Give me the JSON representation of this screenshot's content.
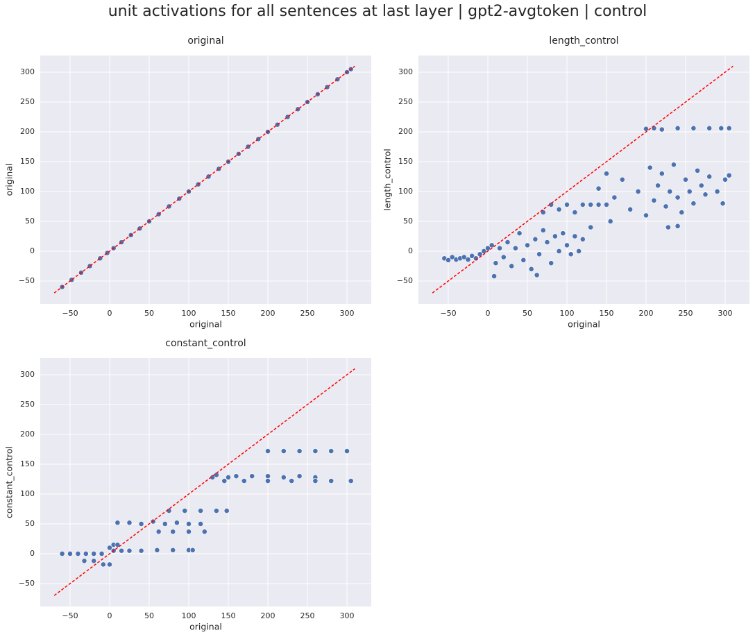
{
  "title": "unit activations for all sentences at last layer | gpt2-avgtoken | control",
  "chart_data": [
    {
      "type": "scatter",
      "title": "original",
      "xlabel": "original",
      "ylabel": "original",
      "color": "#4c72b0",
      "grid": true,
      "xlim": [
        -87.7,
        330.7
      ],
      "ylim": [
        -88.4,
        327.9
      ],
      "xticks": [
        {
          "value": -50,
          "label": "−50"
        },
        0,
        50,
        100,
        150,
        200,
        250,
        300
      ],
      "yticks": [
        {
          "value": -50,
          "label": "−50"
        },
        0,
        50,
        100,
        150,
        200,
        250,
        300
      ],
      "x": [
        -60,
        -48,
        -36,
        -25,
        -12,
        -3,
        5,
        15,
        27,
        38,
        50,
        62,
        75,
        88,
        100,
        112,
        125,
        138,
        150,
        163,
        175,
        188,
        200,
        212,
        225,
        238,
        250,
        263,
        275,
        288,
        300,
        305
      ],
      "y": [
        -60,
        -48,
        -36,
        -25,
        -12,
        -3,
        5,
        15,
        27,
        38,
        50,
        62,
        75,
        88,
        100,
        112,
        125,
        138,
        150,
        163,
        175,
        188,
        200,
        212,
        225,
        238,
        250,
        263,
        275,
        288,
        300,
        305
      ],
      "reference_line": {
        "color": "red",
        "x": [
          -70,
          310
        ],
        "y": [
          -70,
          310
        ]
      }
    },
    {
      "type": "scatter",
      "title": "length_control",
      "xlabel": "original",
      "ylabel": "length_control",
      "color": "#4c72b0",
      "grid": true,
      "xlim": [
        -87.7,
        330.7
      ],
      "ylim": [
        -88.4,
        327.9
      ],
      "xticks": [
        {
          "value": -50,
          "label": "−50"
        },
        0,
        50,
        100,
        150,
        200,
        250,
        300
      ],
      "yticks": [
        {
          "value": -50,
          "label": "−50"
        },
        0,
        50,
        100,
        150,
        200,
        250,
        300
      ],
      "x": [
        -55,
        -50,
        -45,
        -40,
        -35,
        -30,
        -25,
        -20,
        -15,
        -10,
        -5,
        0,
        5,
        8,
        10,
        15,
        20,
        25,
        30,
        35,
        40,
        45,
        50,
        55,
        60,
        62,
        65,
        70,
        75,
        80,
        85,
        90,
        95,
        100,
        105,
        110,
        115,
        120,
        70,
        80,
        90,
        100,
        110,
        120,
        130,
        140,
        150,
        130,
        140,
        150,
        155,
        160,
        170,
        180,
        190,
        200,
        205,
        210,
        215,
        220,
        225,
        230,
        235,
        240,
        245,
        250,
        255,
        260,
        265,
        270,
        275,
        280,
        290,
        300,
        305,
        297,
        228,
        240,
        200,
        210,
        220,
        240,
        260,
        280,
        295,
        305
      ],
      "y": [
        -12,
        -15,
        -10,
        -14,
        -12,
        -10,
        -14,
        -8,
        -12,
        -5,
        0,
        5,
        10,
        -42,
        -20,
        5,
        -10,
        15,
        -25,
        5,
        30,
        -15,
        10,
        -30,
        20,
        -40,
        -5,
        35,
        15,
        -20,
        25,
        0,
        30,
        10,
        -5,
        25,
        0,
        20,
        65,
        78,
        70,
        78,
        65,
        78,
        78,
        78,
        78,
        40,
        105,
        130,
        50,
        90,
        120,
        70,
        100,
        60,
        140,
        85,
        110,
        130,
        75,
        100,
        145,
        90,
        65,
        120,
        100,
        80,
        135,
        110,
        95,
        125,
        100,
        120,
        127,
        80,
        40,
        42,
        205,
        206,
        204,
        206,
        206,
        206,
        206,
        206
      ],
      "reference_line": {
        "color": "red",
        "x": [
          -70,
          310
        ],
        "y": [
          -70,
          310
        ]
      }
    },
    {
      "type": "scatter",
      "title": "constant_control",
      "xlabel": "original",
      "ylabel": "constant_control",
      "color": "#4c72b0",
      "grid": true,
      "xlim": [
        -87.7,
        330.7
      ],
      "ylim": [
        -88.4,
        327.9
      ],
      "xticks": [
        {
          "value": -50,
          "label": "−50"
        },
        0,
        50,
        100,
        150,
        200,
        250,
        300
      ],
      "yticks": [
        {
          "value": -50,
          "label": "−50"
        },
        0,
        50,
        100,
        150,
        200,
        250,
        300
      ],
      "x": [
        -60,
        -50,
        -40,
        -30,
        -20,
        -10,
        -32,
        -20,
        -8,
        0,
        0,
        5,
        10,
        5,
        15,
        25,
        40,
        60,
        80,
        100,
        105,
        10,
        25,
        40,
        55,
        70,
        85,
        100,
        115,
        62,
        80,
        100,
        120,
        75,
        95,
        115,
        135,
        148,
        130,
        135,
        145,
        150,
        160,
        180,
        200,
        220,
        240,
        260,
        170,
        200,
        230,
        260,
        280,
        305,
        200,
        220,
        240,
        260,
        280,
        300
      ],
      "y": [
        0,
        0,
        0,
        0,
        0,
        0,
        -12,
        -12,
        -18,
        -18,
        10,
        15,
        15,
        5,
        5,
        5,
        5,
        6,
        6,
        6,
        6,
        52,
        52,
        50,
        54,
        50,
        52,
        50,
        50,
        37,
        37,
        37,
        37,
        72,
        72,
        72,
        72,
        72,
        128,
        132,
        122,
        128,
        130,
        130,
        130,
        128,
        130,
        128,
        122,
        122,
        122,
        122,
        122,
        122,
        172,
        172,
        172,
        172,
        172,
        172
      ],
      "reference_line": {
        "color": "red",
        "x": [
          -70,
          310
        ],
        "y": [
          -70,
          310
        ]
      }
    }
  ]
}
